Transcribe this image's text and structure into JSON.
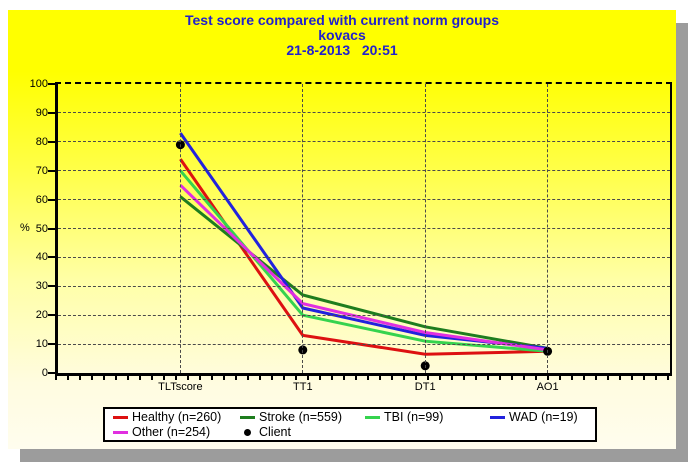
{
  "window": {
    "title_line1": "Test score compared with current norm groups",
    "title_line2": "kovacs",
    "title_line3": "21-8-2013   20:51"
  },
  "colors": {
    "title_text": "#2121cd",
    "panel_top": "#ffff00",
    "panel_bottom": "#fffdee",
    "shadow": "#9c9c9c",
    "grid": "#4a4a4a",
    "axis": "#000000",
    "legend_bg": "#ffffff"
  },
  "chart_data": {
    "type": "line",
    "title": "Test score compared with current norm groups",
    "subtitle": "kovacs",
    "datetime": "21-8-2013 20:51",
    "categories": [
      "TLTscore",
      "TT1",
      "DT1",
      "AO1"
    ],
    "xlabel": "",
    "ylabel": "%",
    "ylim": [
      0,
      100
    ],
    "ytick_step": 10,
    "grid": "dashed",
    "legend_position": "bottom",
    "series": [
      {
        "name": "Healthy (n=260)",
        "key": "healthy",
        "color": "#dd1111",
        "style": "line",
        "values": [
          74,
          13,
          6.5,
          7.5
        ]
      },
      {
        "name": "Stroke (n=559)",
        "key": "stroke",
        "color": "#1e7d1e",
        "style": "line",
        "values": [
          61,
          27,
          16,
          8.5
        ]
      },
      {
        "name": "TBI (n=99)",
        "key": "tbi",
        "color": "#35d34e",
        "style": "line",
        "values": [
          70,
          20,
          11,
          7.5
        ]
      },
      {
        "name": "WAD (n=19)",
        "key": "wad",
        "color": "#2222dd",
        "style": "line",
        "values": [
          83,
          22.5,
          13,
          8.5
        ]
      },
      {
        "name": "Other (n=254)",
        "key": "other",
        "color": "#e02fe0",
        "style": "line",
        "values": [
          65,
          24,
          14,
          8
        ]
      },
      {
        "name": "Client",
        "key": "client",
        "color": "#000000",
        "style": "points",
        "values": [
          79,
          8,
          2.5,
          7.5
        ]
      }
    ]
  }
}
